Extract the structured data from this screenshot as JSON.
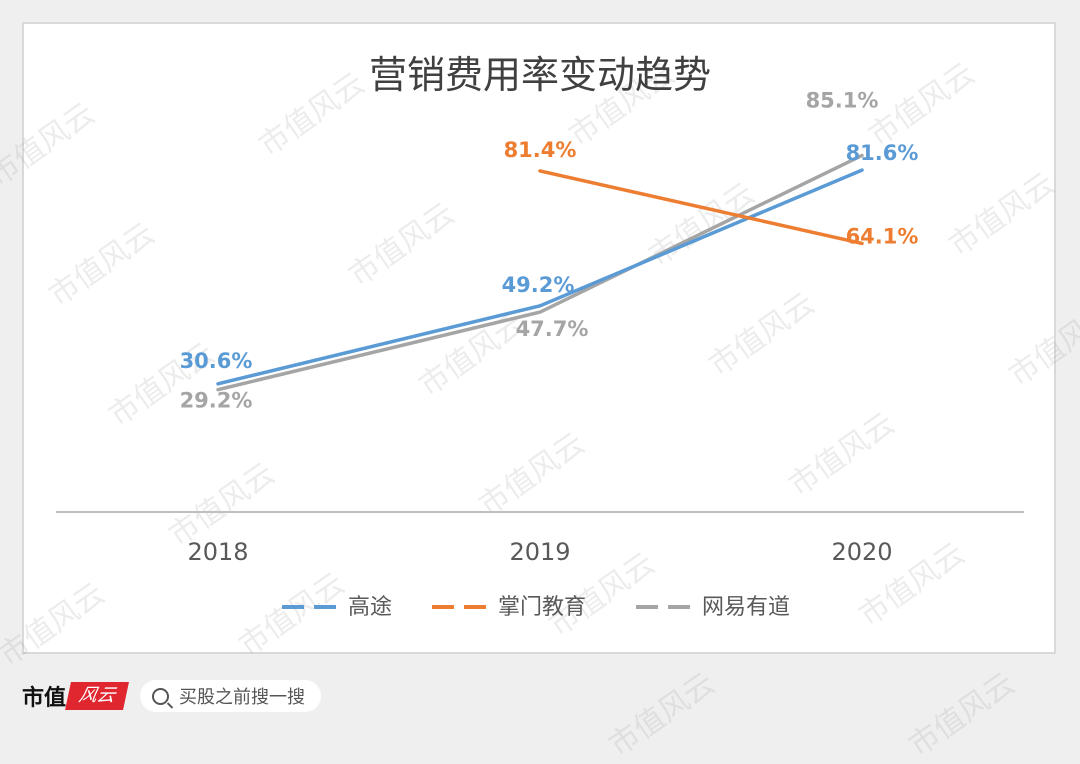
{
  "chart_data": {
    "type": "line",
    "title": "营销费用率变动趋势",
    "categories": [
      "2018",
      "2019",
      "2020"
    ],
    "y_unit": "%",
    "ylim": [
      0,
      100
    ],
    "grid": false,
    "legend_position": "bottom",
    "series": [
      {
        "name": "高途",
        "color": "#5b9bd5",
        "values": [
          30.6,
          49.2,
          81.6
        ],
        "labels": [
          "30.6%",
          "49.2%",
          "81.6%"
        ]
      },
      {
        "name": "掌门教育",
        "color": "#ed7d31",
        "values": [
          null,
          81.4,
          64.1
        ],
        "labels": [
          "",
          "81.4%",
          "64.1%"
        ]
      },
      {
        "name": "网易有道",
        "color": "#a5a5a5",
        "values": [
          29.2,
          47.7,
          85.1
        ],
        "labels": [
          "29.2%",
          "47.7%",
          "85.1%"
        ]
      }
    ]
  },
  "footer": {
    "brand": "市值",
    "logo": "风云",
    "search_placeholder": "买股之前搜一搜"
  },
  "watermark_text": "市值风云",
  "colors": {
    "panel_border": "#d9d9d9",
    "axis": "#bfbfbf",
    "brand_red": "#e0262f"
  }
}
